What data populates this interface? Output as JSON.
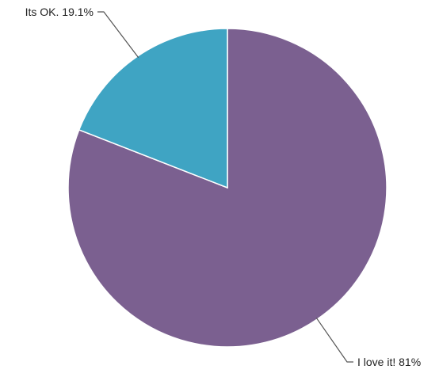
{
  "chart_data": {
    "type": "pie",
    "title": "",
    "slices": [
      {
        "label": "I love it!",
        "value": 81,
        "display": "I love it! 81%",
        "color": "#7b6090"
      },
      {
        "label": "Its OK.",
        "value": 19.1,
        "display": "Its OK. 19.1%",
        "color": "#3fa4c3"
      }
    ],
    "start_angle_deg": 0,
    "direction": "clockwise"
  }
}
